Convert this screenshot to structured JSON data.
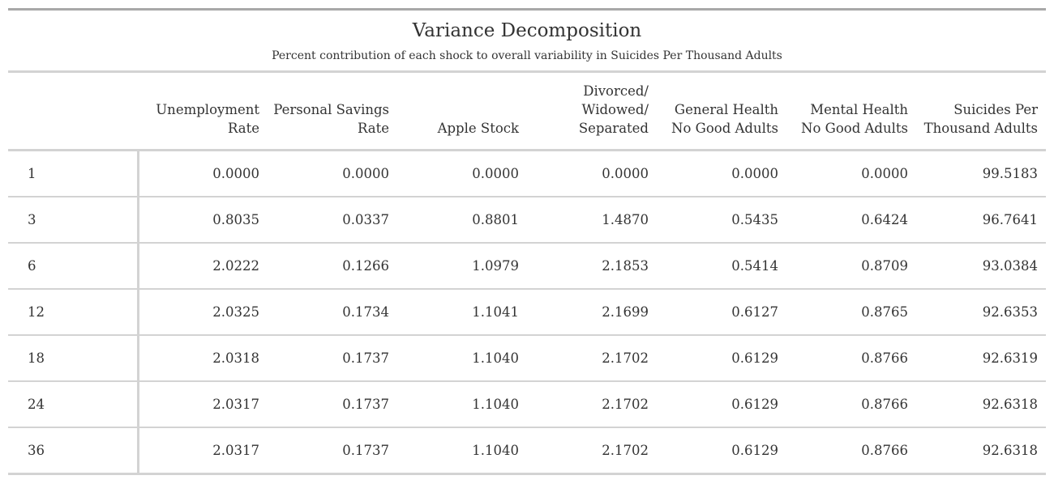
{
  "title": "Variance Decomposition",
  "subtitle": "Percent contribution of each shock to overall variability in Suicides Per Thousand Adults",
  "columns": [
    {
      "line1": "",
      "line2": "",
      "line3": ""
    },
    {
      "line1": "",
      "line2": "Unemployment",
      "line3": "Rate"
    },
    {
      "line1": "",
      "line2": "Personal Savings",
      "line3": "Rate"
    },
    {
      "line1": "",
      "line2": "",
      "line3": "Apple Stock"
    },
    {
      "line1": "Divorced/",
      "line2": "Widowed/",
      "line3": "Separated"
    },
    {
      "line1": "",
      "line2": "General Health",
      "line3": "No Good Adults"
    },
    {
      "line1": "",
      "line2": "Mental Health",
      "line3": "No Good Adults"
    },
    {
      "line1": "",
      "line2": "Suicides Per",
      "line3": "Thousand Adults"
    }
  ],
  "rows": [
    [
      "1",
      "0.0000",
      "0.0000",
      "0.0000",
      "0.0000",
      "0.0000",
      "0.0000",
      "99.5183"
    ],
    [
      "3",
      "0.8035",
      "0.0337",
      "0.8801",
      "1.4870",
      "0.5435",
      "0.6424",
      "96.7641"
    ],
    [
      "6",
      "2.0222",
      "0.1266",
      "1.0979",
      "2.1853",
      "0.5414",
      "0.8709",
      "93.0384"
    ],
    [
      "12",
      "2.0325",
      "0.1734",
      "1.1041",
      "2.1699",
      "0.6127",
      "0.8765",
      "92.6353"
    ],
    [
      "18",
      "2.0318",
      "0.1737",
      "1.1040",
      "2.1702",
      "0.6129",
      "0.8766",
      "92.6319"
    ],
    [
      "24",
      "2.0317",
      "0.1737",
      "1.1040",
      "2.1702",
      "0.6129",
      "0.8766",
      "92.6318"
    ],
    [
      "36",
      "2.0317",
      "0.1737",
      "1.1040",
      "2.1702",
      "0.6129",
      "0.8766",
      "92.6318"
    ]
  ]
}
